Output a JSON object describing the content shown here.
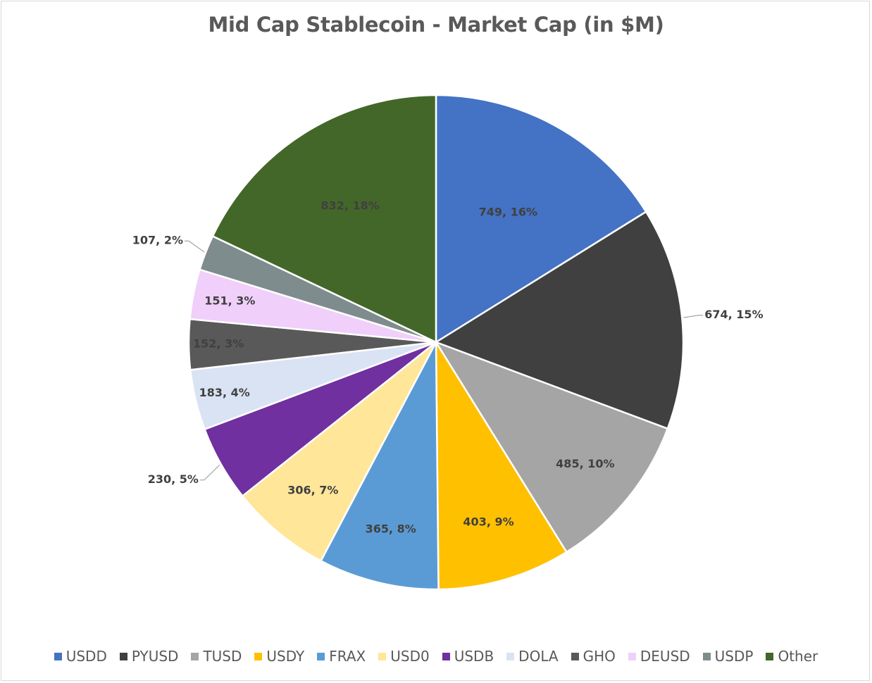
{
  "chart_data": {
    "type": "pie",
    "title": "Mid Cap Stablecoin - Market Cap (in $M)",
    "categories": [
      "USDD",
      "PYUSD",
      "TUSD",
      "USDY",
      "FRAX",
      "USD0",
      "USDB",
      "DOLA",
      "GHO",
      "DEUSD",
      "USDP",
      "Other"
    ],
    "values": [
      749,
      674,
      485,
      403,
      365,
      306,
      230,
      183,
      152,
      151,
      107,
      832
    ],
    "data_labels": [
      "749, 16%",
      "674, 15%",
      "485, 10%",
      "403, 9%",
      "365, 8%",
      "306, 7%",
      "230, 5%",
      "183, 4%",
      "152, 3%",
      "151, 3%",
      "107, 2%",
      "832, 18%"
    ],
    "colors": [
      "#4472c4",
      "#404040",
      "#a5a5a5",
      "#ffc000",
      "#5b9bd5",
      "#ffe699",
      "#7030a0",
      "#dae3f3",
      "#595959",
      "#f0cffa",
      "#7f8c8d",
      "#436729"
    ],
    "legend_position": "bottom"
  }
}
